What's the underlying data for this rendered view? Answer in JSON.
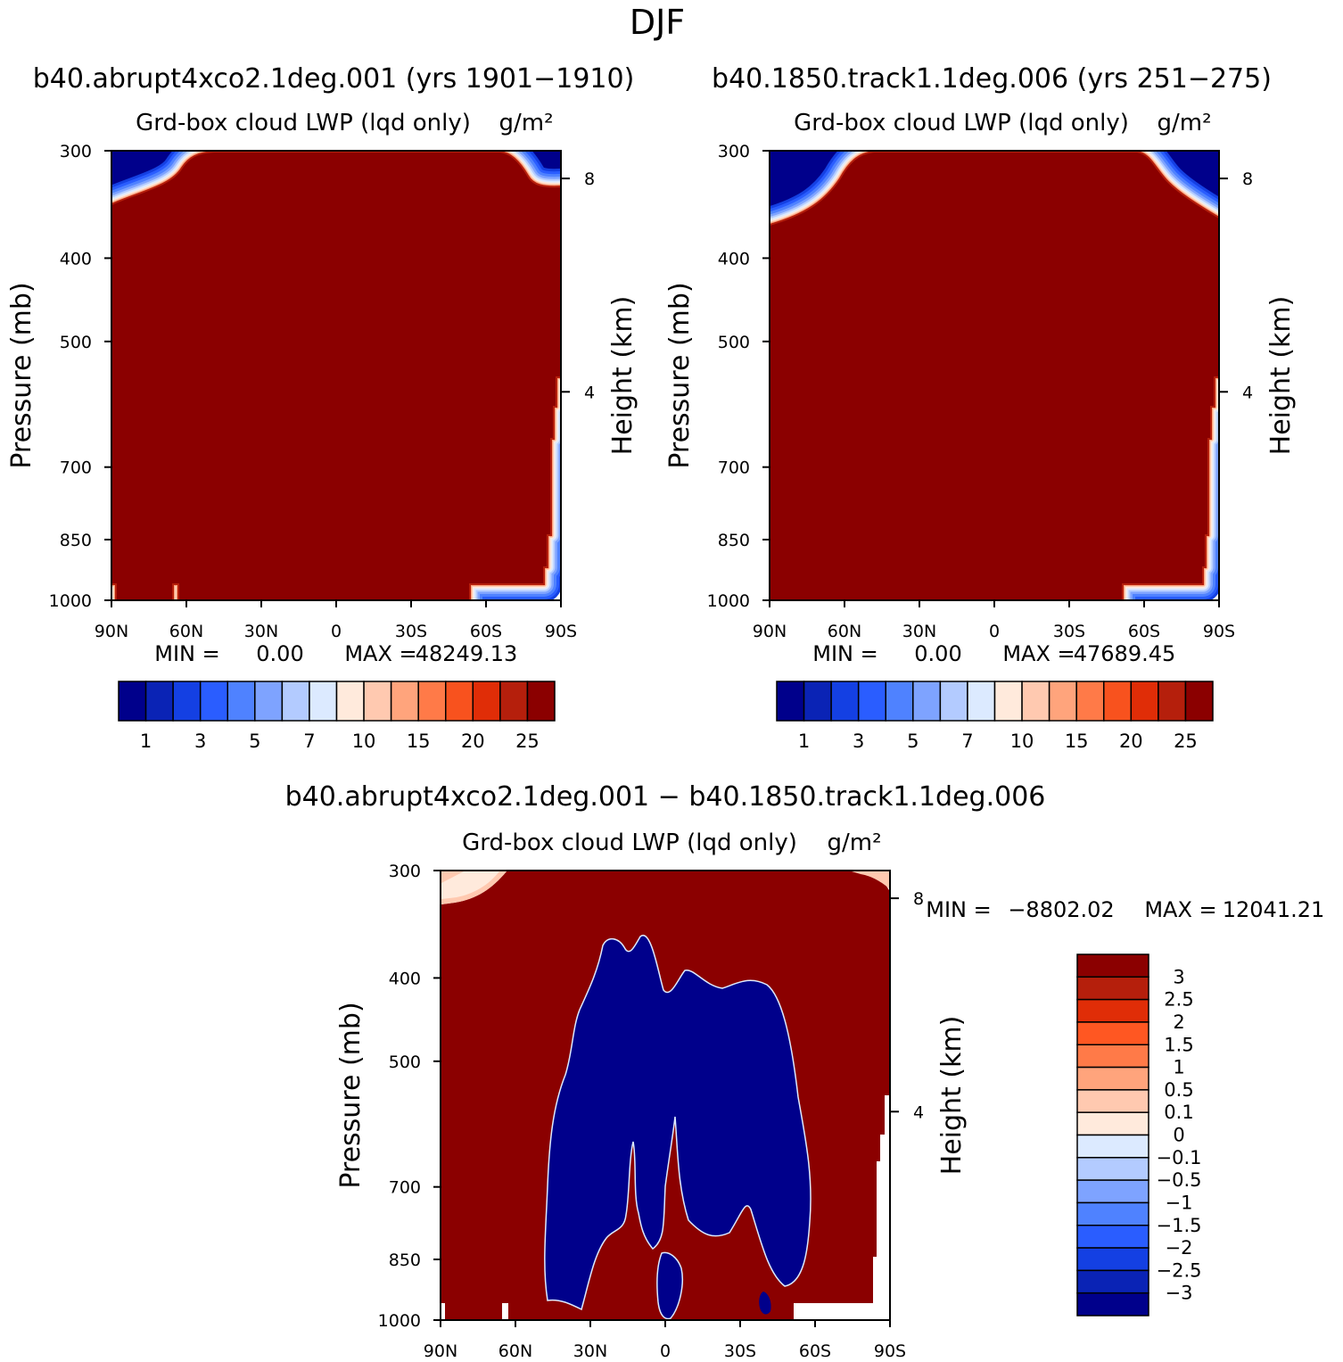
{
  "figure_title": "DJF",
  "chart_data": [
    {
      "type": "heatmap",
      "id": "panel1",
      "title": "b40.abrupt4xco2.1deg.001 (yrs 1901-1910)",
      "subtitle": "Grd-box cloud LWP (lqd only)",
      "units": "g/m²",
      "ylabel": "Pressure (mb)",
      "ylabel_right": "Height (km)",
      "x_ticks": [
        "90N",
        "60N",
        "30N",
        "0",
        "30S",
        "60S",
        "90S"
      ],
      "y_ticks": [
        300,
        400,
        500,
        700,
        850,
        1000
      ],
      "y_right_ticks": [
        8,
        4
      ],
      "ylim": [
        1000,
        300
      ],
      "stats": {
        "min_label": "MIN =",
        "min": "0.00",
        "max_label": "MAX =",
        "max": "48249.13"
      },
      "colorbar": {
        "orientation": "horizontal",
        "tick_labels": [
          "1",
          "3",
          "5",
          "7",
          "10",
          "15",
          "20",
          "25"
        ],
        "colors": [
          "#00008b",
          "#0a23b5",
          "#1440e3",
          "#2a5dff",
          "#4f82ff",
          "#7ea3ff",
          "#b3cbff",
          "#dceaff",
          "#ffeadc",
          "#ffc9b0",
          "#ffa47c",
          "#ff7a48",
          "#f8521e",
          "#e02d07",
          "#b51f0c",
          "#8b0000"
        ]
      }
    },
    {
      "type": "heatmap",
      "id": "panel2",
      "title": "b40.1850.track1.1deg.006 (yrs 251-275)",
      "subtitle": "Grd-box cloud LWP (lqd only)",
      "units": "g/m²",
      "ylabel": "Pressure (mb)",
      "ylabel_right": "Height (km)",
      "x_ticks": [
        "90N",
        "60N",
        "30N",
        "0",
        "30S",
        "60S",
        "90S"
      ],
      "y_ticks": [
        300,
        400,
        500,
        700,
        850,
        1000
      ],
      "y_right_ticks": [
        8,
        4
      ],
      "ylim": [
        1000,
        300
      ],
      "stats": {
        "min_label": "MIN =",
        "min": "0.00",
        "max_label": "MAX =",
        "max": "47689.45"
      },
      "colorbar": {
        "orientation": "horizontal",
        "tick_labels": [
          "1",
          "3",
          "5",
          "7",
          "10",
          "15",
          "20",
          "25"
        ],
        "colors": [
          "#00008b",
          "#0a23b5",
          "#1440e3",
          "#2a5dff",
          "#4f82ff",
          "#7ea3ff",
          "#b3cbff",
          "#dceaff",
          "#ffeadc",
          "#ffc9b0",
          "#ffa47c",
          "#ff7a48",
          "#f8521e",
          "#e02d07",
          "#b51f0c",
          "#8b0000"
        ]
      }
    },
    {
      "type": "heatmap",
      "id": "panel3",
      "title": "b40.abrupt4xco2.1deg.001 - b40.1850.track1.1deg.006",
      "subtitle": "Grd-box cloud LWP (lqd only)",
      "units": "g/m²",
      "ylabel": "Pressure (mb)",
      "ylabel_right": "Height (km)",
      "x_ticks": [
        "90N",
        "60N",
        "30N",
        "0",
        "30S",
        "60S",
        "90S"
      ],
      "y_ticks": [
        300,
        400,
        500,
        700,
        850,
        1000
      ],
      "y_right_ticks": [
        8,
        4
      ],
      "ylim": [
        1000,
        300
      ],
      "stats": {
        "min_label": "MIN =",
        "min": "-8802.02",
        "max_label": "MAX =",
        "max": "12041.21"
      },
      "colorbar": {
        "orientation": "vertical",
        "tick_labels": [
          "3",
          "2.5",
          "2",
          "1.5",
          "1",
          "0.5",
          "0.1",
          "0",
          "-0.1",
          "-0.5",
          "-1",
          "-1.5",
          "-2",
          "-2.5",
          "-3"
        ],
        "colors": [
          "#8b0000",
          "#b51f0c",
          "#e02d07",
          "#ff5722",
          "#ff7a48",
          "#ffa47c",
          "#ffc9b0",
          "#ffeadc",
          "#dceaff",
          "#b3cbff",
          "#7ea3ff",
          "#4f82ff",
          "#2a5dff",
          "#1440e3",
          "#0a23b5",
          "#00008b"
        ]
      }
    }
  ],
  "colors": {
    "dark_red": "#8b0000",
    "dark_blue": "#00008b",
    "white": "#ffffff"
  }
}
